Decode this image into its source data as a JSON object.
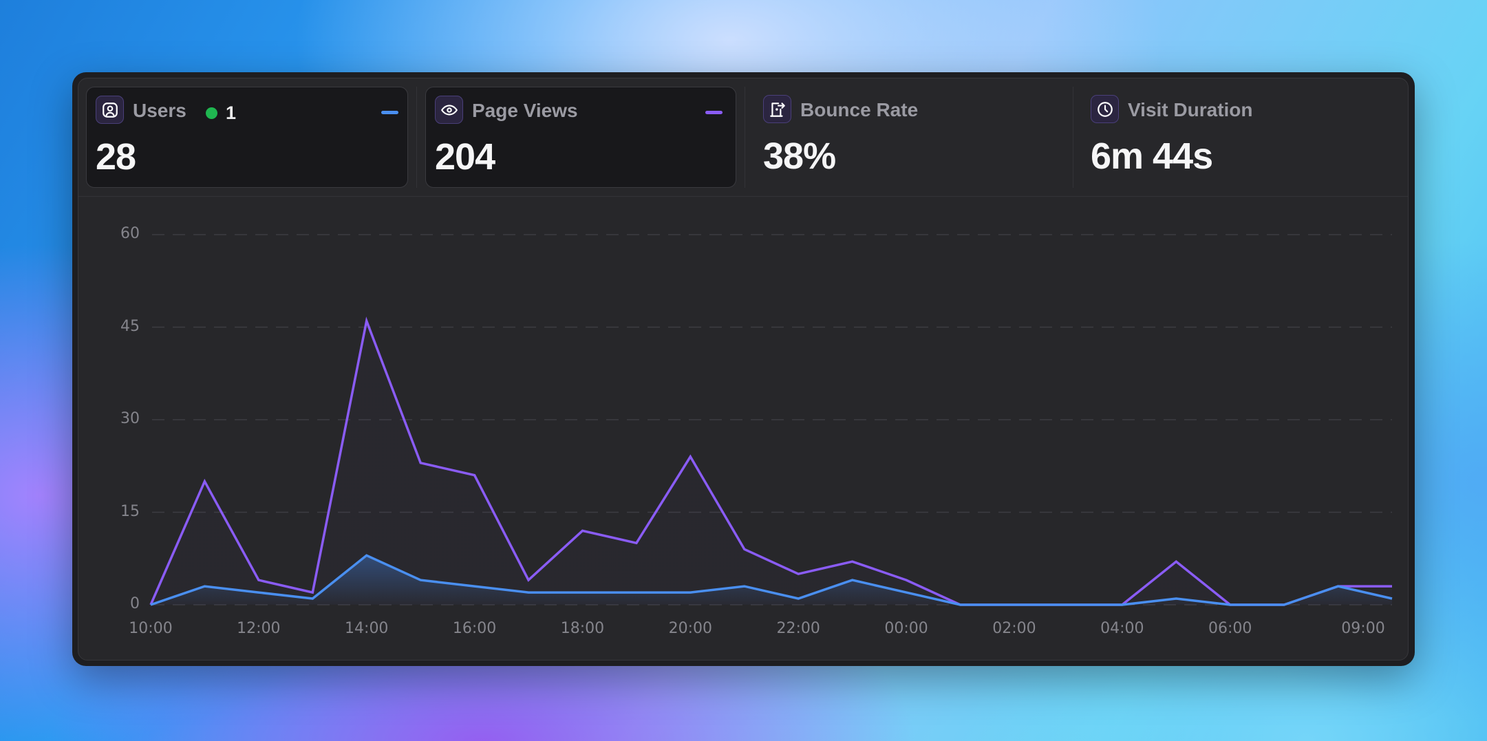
{
  "stats": [
    {
      "id": "users",
      "label": "Users",
      "value": "28",
      "icon": "user-icon",
      "active": true,
      "live_count": "1",
      "legend_color": "#4a8ff0"
    },
    {
      "id": "page-views",
      "label": "Page Views",
      "value": "204",
      "icon": "eye-icon",
      "active": true,
      "legend_color": "#8a5cf5"
    },
    {
      "id": "bounce-rate",
      "label": "Bounce Rate",
      "value": "38%",
      "icon": "door-exit-icon",
      "active": false
    },
    {
      "id": "visit-duration",
      "label": "Visit Duration",
      "value": "6m 44s",
      "icon": "clock-icon",
      "active": false
    }
  ],
  "colors": {
    "users_line": "#4a8ff0",
    "page_views_line": "#8a5cf5",
    "live_dot": "#1fb650",
    "panel_bg": "#27272a",
    "card_bg": "#18181b"
  },
  "chart_data": {
    "type": "area",
    "title": "",
    "xlabel": "",
    "ylabel": "",
    "ylim": [
      0,
      60
    ],
    "yticks": [
      0,
      15,
      30,
      45,
      60
    ],
    "grid": "horizontal dashed",
    "x": [
      "10:00",
      "11:00",
      "12:00",
      "13:00",
      "14:00",
      "15:00",
      "16:00",
      "17:00",
      "18:00",
      "19:00",
      "20:00",
      "21:00",
      "22:00",
      "23:00",
      "00:00",
      "01:00",
      "02:00",
      "03:00",
      "04:00",
      "05:00",
      "06:00",
      "07:00",
      "08:00",
      "09:00"
    ],
    "xtick_labels": [
      {
        "label": "10:00",
        "index": 0
      },
      {
        "label": "12:00",
        "index": 2
      },
      {
        "label": "14:00",
        "index": 4
      },
      {
        "label": "16:00",
        "index": 6
      },
      {
        "label": "18:00",
        "index": 8
      },
      {
        "label": "20:00",
        "index": 10
      },
      {
        "label": "22:00",
        "index": 12
      },
      {
        "label": "00:00",
        "index": 14
      },
      {
        "label": "02:00",
        "index": 16
      },
      {
        "label": "04:00",
        "index": 18
      },
      {
        "label": "06:00",
        "index": 20
      },
      {
        "label": "09:00",
        "index": 23
      }
    ],
    "series": [
      {
        "name": "Page Views",
        "color": "#8a5cf5",
        "values": [
          0,
          20,
          4,
          2,
          46,
          23,
          21,
          4,
          12,
          10,
          24,
          9,
          5,
          7,
          4,
          0,
          0,
          0,
          0,
          7,
          0,
          0,
          3,
          3
        ]
      },
      {
        "name": "Users",
        "color": "#4a8ff0",
        "values": [
          0,
          3,
          2,
          1,
          8,
          4,
          3,
          2,
          2,
          2,
          2,
          3,
          1,
          4,
          2,
          0,
          0,
          0,
          0,
          1,
          0,
          0,
          3,
          1
        ]
      }
    ],
    "legend": "in stat cards (colored dashes)"
  }
}
